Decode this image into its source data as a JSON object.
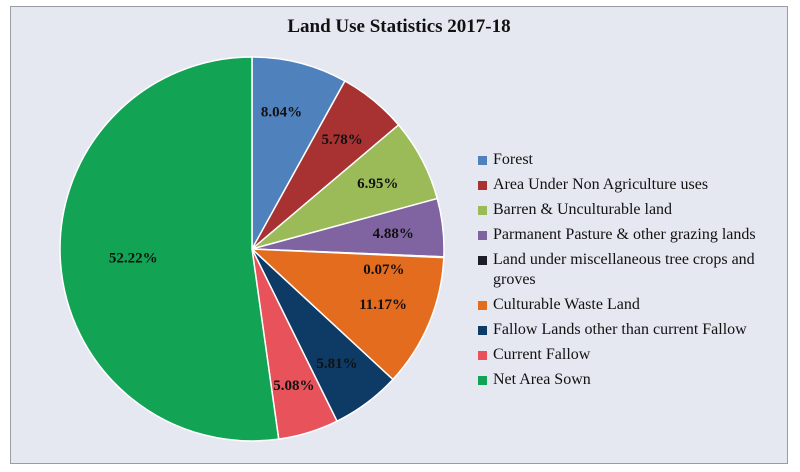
{
  "chart_data": {
    "type": "pie",
    "title": "Land Use Statistics 2017-18",
    "legend_position": "right",
    "slices": [
      {
        "name": "Forest",
        "value": 8.04,
        "label": "8.04%",
        "color": "#4f81bd"
      },
      {
        "name": "Area Under Non Agriculture uses",
        "value": 5.78,
        "label": "5.78%",
        "color": "#a83232"
      },
      {
        "name": "Barren & Unculturable land",
        "value": 6.95,
        "label": "6.95%",
        "color": "#9bbb59"
      },
      {
        "name": "Parmanent Pasture & other grazing lands",
        "value": 4.88,
        "label": "4.88%",
        "color": "#8064a2"
      },
      {
        "name": "Land under miscellaneous tree crops and groves",
        "value": 0.07,
        "label": "0.07%",
        "color": "#1b1b2a"
      },
      {
        "name": "Culturable Waste Land",
        "value": 11.17,
        "label": "11.17%",
        "color": "#e36c1e"
      },
      {
        "name": "Fallow Lands other than current Fallow",
        "value": 5.81,
        "label": "5.81%",
        "color": "#0d3b66"
      },
      {
        "name": "Current Fallow",
        "value": 5.08,
        "label": "5.08%",
        "color": "#e8525a"
      },
      {
        "name": "Net Area Sown",
        "value": 52.22,
        "label": "52.22%",
        "color": "#12a454"
      }
    ]
  }
}
